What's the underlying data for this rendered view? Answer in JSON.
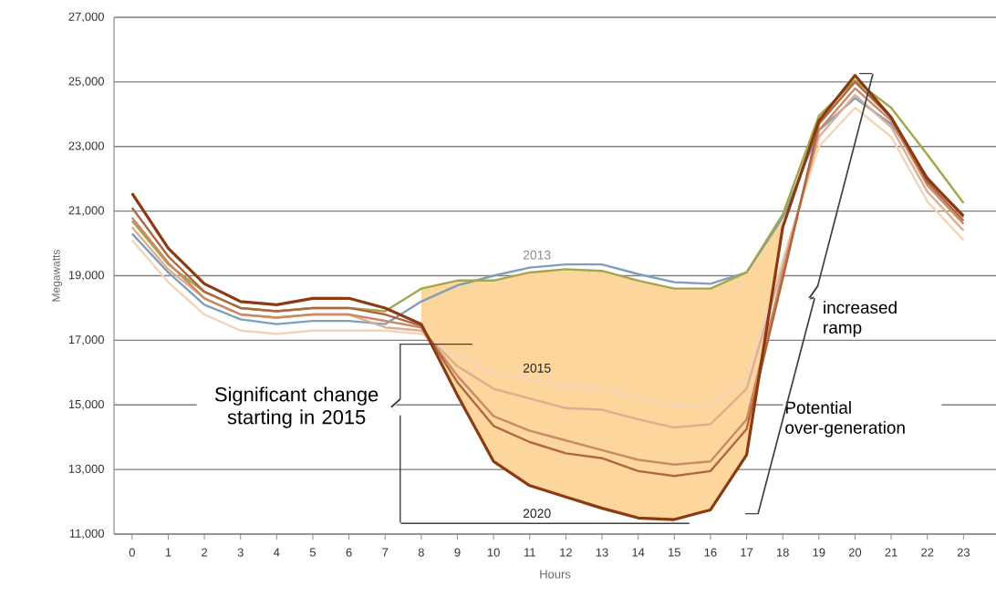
{
  "chart_data": {
    "type": "line",
    "xlabel": "Hours",
    "ylabel": "Megawatts",
    "categories": [
      "0",
      "1",
      "2",
      "3",
      "4",
      "5",
      "6",
      "7",
      "8",
      "9",
      "10",
      "11",
      "12",
      "13",
      "14",
      "15",
      "16",
      "17",
      "18",
      "19",
      "20",
      "21",
      "22",
      "23"
    ],
    "ylim": [
      11000,
      27000
    ],
    "yticks": [
      {
        "value": 11000,
        "label": "11,000"
      },
      {
        "value": 13000,
        "label": "13,000"
      },
      {
        "value": 15000,
        "label": "15,000"
      },
      {
        "value": 17000,
        "label": "17,000"
      },
      {
        "value": 19000,
        "label": "19,000"
      },
      {
        "value": 21000,
        "label": "21,000"
      },
      {
        "value": 23000,
        "label": "23,000"
      },
      {
        "value": 25000,
        "label": "25,000"
      },
      {
        "value": 27000,
        "label": "27,000"
      }
    ],
    "grid": "y",
    "marker": "none",
    "line_style": "solid",
    "series": [
      {
        "name": "2013",
        "color": "#7f9fb8",
        "values": [
          20300,
          19100,
          18100,
          17650,
          17500,
          17600,
          17600,
          17500,
          18200,
          18700,
          19000,
          19250,
          19350,
          19350,
          19050,
          18800,
          18750,
          19100,
          20800,
          23500,
          24500,
          23700,
          22050,
          20800
        ]
      },
      {
        "color": "#a3a64a",
        "values": [
          20700,
          19350,
          18500,
          18000,
          17900,
          18000,
          18000,
          17900,
          18600,
          18850,
          18850,
          19100,
          19200,
          19150,
          18850,
          18600,
          18600,
          19100,
          20900,
          23950,
          25050,
          24200,
          22750,
          21250
        ],
        "lower": [
          null,
          null,
          null,
          null,
          null,
          null,
          null,
          null,
          17500,
          15300,
          13250,
          12500,
          12150,
          11800,
          11500,
          11450,
          11750,
          13450,
          20500,
          null,
          null,
          null,
          null,
          null
        ],
        "upper": [
          null,
          null,
          null,
          null,
          null,
          null,
          null,
          null,
          18600,
          18850,
          18850,
          19100,
          19200,
          19150,
          18850,
          18600,
          18600,
          19100,
          20900,
          null,
          null,
          null,
          null,
          null
        ]
      },
      {
        "name": "2015",
        "color": "#f2d4b8",
        "values": [
          20100,
          18800,
          17800,
          17300,
          17200,
          17300,
          17300,
          17300,
          17200,
          16500,
          16000,
          15800,
          15600,
          15500,
          15200,
          14950,
          15000,
          15800,
          19500,
          23000,
          24200,
          23300,
          21300,
          20100
        ]
      },
      {
        "color": "#dfae92",
        "values": [
          20500,
          19200,
          18300,
          17800,
          17700,
          17800,
          17800,
          17400,
          17300,
          16200,
          15500,
          15200,
          14900,
          14850,
          14550,
          14300,
          14400,
          15500,
          19300,
          23300,
          24600,
          23600,
          21600,
          20400
        ]
      },
      {
        "color": "#c98a67",
        "values": [
          20800,
          19400,
          18300,
          17800,
          17700,
          17800,
          17800,
          17600,
          17400,
          15900,
          14650,
          14200,
          13900,
          13600,
          13300,
          13150,
          13250,
          14550,
          19100,
          23500,
          24800,
          23800,
          21800,
          20600
        ]
      },
      {
        "color": "#b0663f",
        "values": [
          21100,
          19600,
          18500,
          18000,
          17900,
          18000,
          18000,
          17800,
          17450,
          15700,
          14350,
          13850,
          13500,
          13350,
          12950,
          12800,
          12950,
          14250,
          18900,
          23700,
          25000,
          23900,
          21900,
          20700
        ]
      },
      {
        "name": "2020",
        "color": "#8b3a12",
        "values": [
          21550,
          19850,
          18750,
          18200,
          18100,
          18300,
          18300,
          18000,
          17500,
          15300,
          13250,
          12500,
          12150,
          11800,
          11500,
          11450,
          11750,
          13450,
          20500,
          23800,
          25200,
          23900,
          22000,
          20850
        ]
      }
    ],
    "annotations": [
      "Significant change starting in 2015",
      "increased ramp",
      "Potential over-generation"
    ]
  }
}
